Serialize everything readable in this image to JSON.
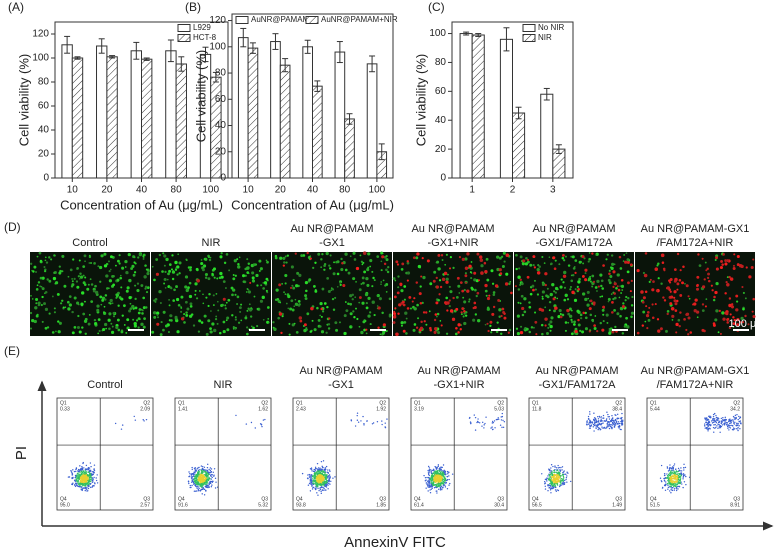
{
  "chart_data": [
    {
      "type": "bar",
      "title": "(A)",
      "x_label": "Concentration of Au (μg/mL)",
      "y_label": "Cell viability (%)",
      "categories": [
        "10",
        "20",
        "40",
        "80",
        "100"
      ],
      "series": [
        {
          "name": "L929",
          "color": "#ffffff",
          "values": [
            111,
            110,
            106,
            106,
            103
          ],
          "errors": [
            7,
            6,
            7,
            9,
            6
          ]
        },
        {
          "name": "HCT-8",
          "color": "#ffffff",
          "hatch": true,
          "values": [
            100,
            101,
            99,
            95,
            84
          ],
          "errors": [
            1,
            1,
            1,
            6,
            4
          ]
        }
      ],
      "ylim": [
        0,
        130
      ],
      "yticks": [
        0,
        20,
        40,
        60,
        80,
        100,
        120
      ],
      "legend": "upper right"
    },
    {
      "type": "bar",
      "title": "(B)",
      "x_label": "Concentration of Au (μg/mL)",
      "y_label": "Cell viability (%)",
      "categories": [
        "10",
        "20",
        "40",
        "80",
        "100"
      ],
      "series": [
        {
          "name": "AuNR@PAMAM",
          "color": "#ffffff",
          "values": [
            107,
            104,
            100,
            96,
            87
          ],
          "errors": [
            7,
            6,
            5,
            8,
            6
          ]
        },
        {
          "name": "AuNR@PAMAM+NIR",
          "color": "#ffffff",
          "hatch": true,
          "values": [
            99,
            86,
            70,
            45,
            20
          ],
          "errors": [
            4,
            5,
            4,
            4,
            6
          ]
        }
      ],
      "ylim": [
        0,
        125
      ],
      "yticks": [
        0,
        20,
        40,
        60,
        80,
        100,
        120
      ],
      "legend": "upper left"
    },
    {
      "type": "bar",
      "title": "(C)",
      "y_label": "Cell viability (%)",
      "categories": [
        "1",
        "2",
        "3"
      ],
      "series": [
        {
          "name": "No NIR",
          "color": "#ffffff",
          "values": [
            100,
            96,
            58
          ],
          "errors": [
            1,
            8,
            4
          ]
        },
        {
          "name": "NIR",
          "color": "#ffffff",
          "hatch": true,
          "values": [
            99,
            45,
            20
          ],
          "errors": [
            1,
            4,
            3
          ]
        }
      ],
      "ylim": [
        0,
        108
      ],
      "yticks": [
        0,
        20,
        40,
        60,
        80,
        100
      ],
      "legend": "upper right"
    }
  ],
  "panel_d": {
    "label": "(D)",
    "scale": "100 μm",
    "images": [
      {
        "title": [
          "Control"
        ]
      },
      {
        "title": [
          "NIR"
        ]
      },
      {
        "title": [
          "Au NR@PAMAM",
          "-GX1"
        ]
      },
      {
        "title": [
          "Au NR@PAMAM",
          "-GX1+NIR"
        ]
      },
      {
        "title": [
          "Au NR@PAMAM",
          "-GX1/FAM172A"
        ]
      },
      {
        "title": [
          "Au NR@PAMAM-GX1",
          "/FAM172A+NIR"
        ]
      }
    ]
  },
  "panel_e": {
    "label": "(E)",
    "y_label": "PI",
    "x_label": "AnnexinV FITC",
    "plots": [
      {
        "title": [
          "Control"
        ],
        "quadrants": [
          {
            "name": "Q1",
            "value": "0.33"
          },
          {
            "name": "Q2",
            "value": "2.09"
          },
          {
            "name": "Q4",
            "value": "95.0"
          },
          {
            "name": "Q3",
            "value": "2.57"
          }
        ]
      },
      {
        "title": [
          "NIR"
        ],
        "quadrants": [
          {
            "name": "Q1",
            "value": "1.41"
          },
          {
            "name": "Q2",
            "value": "1.62"
          },
          {
            "name": "Q4",
            "value": "91.6"
          },
          {
            "name": "Q3",
            "value": "5.32"
          }
        ]
      },
      {
        "title": [
          "Au NR@PAMAM",
          "-GX1"
        ],
        "quadrants": [
          {
            "name": "Q1",
            "value": "2.43"
          },
          {
            "name": "Q2",
            "value": "1.92"
          },
          {
            "name": "Q4",
            "value": "93.8"
          },
          {
            "name": "Q3",
            "value": "1.85"
          }
        ]
      },
      {
        "title": [
          "Au NR@PAMAM",
          "-GX1+NIR"
        ],
        "quadrants": [
          {
            "name": "Q1",
            "value": "3.19"
          },
          {
            "name": "Q2",
            "value": "5.03"
          },
          {
            "name": "Q4",
            "value": "61.4"
          },
          {
            "name": "Q3",
            "value": "30.4"
          }
        ]
      },
      {
        "title": [
          "Au NR@PAMAM",
          "-GX1/FAM172A"
        ],
        "quadrants": [
          {
            "name": "Q1",
            "value": "11.8"
          },
          {
            "name": "Q2",
            "value": "38.4"
          },
          {
            "name": "Q4",
            "value": "56.5"
          },
          {
            "name": "Q3",
            "value": "1.49"
          }
        ]
      },
      {
        "title": [
          "Au NR@PAMAM-GX1",
          "/FAM172A+NIR"
        ],
        "quadrants": [
          {
            "name": "Q1",
            "value": "5.44"
          },
          {
            "name": "Q2",
            "value": "34.2"
          },
          {
            "name": "Q4",
            "value": "51.5"
          },
          {
            "name": "Q3",
            "value": "8.91"
          }
        ]
      }
    ]
  }
}
